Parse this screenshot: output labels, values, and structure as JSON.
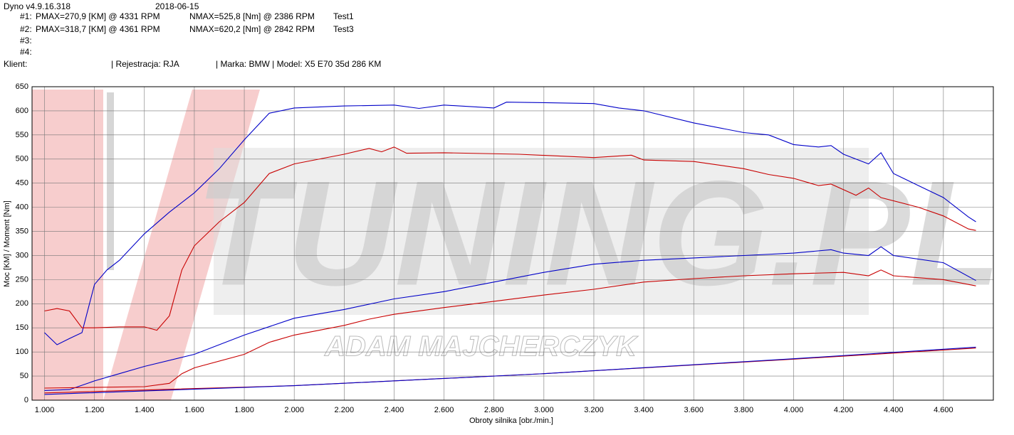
{
  "header": {
    "program": "Dyno v4.9.16.318",
    "date": "2018-06-15",
    "runs": [
      [
        "#1:",
        "PMAX=270,9 [KM] @ 4331 RPM",
        "NMAX=525,8 [Nm] @ 2386 RPM",
        "Test1"
      ],
      [
        "#2:",
        "PMAX=318,7 [KM] @ 4361 RPM",
        "NMAX=620,2 [Nm] @ 2842 RPM",
        "Test3"
      ],
      [
        "#3:"
      ],
      [
        "#4:"
      ]
    ],
    "client": "Klient:",
    "registration": "| Rejestracja: RJA",
    "vehicle": "| Marka: BMW | Model: X5 E70 35d 286 KM"
  },
  "chart_data": {
    "type": "line",
    "watermark": "TUNING.PL",
    "watermark_sub": "ADAM MAJCHERCZYK",
    "xlabel": "Obroty silnika [obr./min.]",
    "ylabel": "Moc [KM] / Moment [Nm]",
    "xlim": [
      950,
      4800
    ],
    "ylim": [
      0,
      650
    ],
    "xticks": [
      {
        "value": 1000,
        "label": "1.000"
      },
      {
        "value": 1200,
        "label": "1.200"
      },
      {
        "value": 1400,
        "label": "1.400"
      },
      {
        "value": 1600,
        "label": "1.600"
      },
      {
        "value": 1800,
        "label": "1.800"
      },
      {
        "value": 2000,
        "label": "2.000"
      },
      {
        "value": 2200,
        "label": "2.200"
      },
      {
        "value": 2400,
        "label": "2.400"
      },
      {
        "value": 2600,
        "label": "2.600"
      },
      {
        "value": 2800,
        "label": "2.800"
      },
      {
        "value": 3000,
        "label": "3.000"
      },
      {
        "value": 3200,
        "label": "3.200"
      },
      {
        "value": 3400,
        "label": "3.400"
      },
      {
        "value": 3600,
        "label": "3.600"
      },
      {
        "value": 3800,
        "label": "3.800"
      },
      {
        "value": 4000,
        "label": "4.000"
      },
      {
        "value": 4200,
        "label": "4.200"
      },
      {
        "value": 4400,
        "label": "4.400"
      },
      {
        "value": 4600,
        "label": "4.600"
      }
    ],
    "yticks": [
      0,
      50,
      100,
      150,
      200,
      250,
      300,
      350,
      400,
      450,
      500,
      550,
      600,
      650
    ],
    "grid": true,
    "series": [
      {
        "color": "#0000c8",
        "x": [
          1000,
          1050,
          1100,
          1150,
          1200,
          1250,
          1300,
          1400,
          1500,
          1600,
          1700,
          1800,
          1900,
          2000,
          2200,
          2400,
          2500,
          2600,
          2800,
          2850,
          3000,
          3200,
          3300,
          3400,
          3600,
          3800,
          3900,
          4000,
          4100,
          4150,
          4200,
          4300,
          4350,
          4400,
          4500,
          4600,
          4700,
          4730
        ],
        "values": [
          140,
          115,
          128,
          140,
          240,
          270,
          290,
          345,
          390,
          430,
          480,
          540,
          595,
          606,
          610,
          612,
          605,
          612,
          606,
          618,
          617,
          615,
          606,
          600,
          575,
          555,
          550,
          530,
          525,
          528,
          510,
          490,
          513,
          470,
          445,
          420,
          380,
          370
        ]
      },
      {
        "color": "#c80000",
        "x": [
          1000,
          1050,
          1100,
          1150,
          1200,
          1300,
          1400,
          1450,
          1500,
          1550,
          1600,
          1700,
          1800,
          1900,
          2000,
          2200,
          2300,
          2350,
          2400,
          2450,
          2600,
          2900,
          3200,
          3350,
          3400,
          3600,
          3800,
          3900,
          4000,
          4100,
          4150,
          4250,
          4300,
          4350,
          4500,
          4600,
          4700,
          4730
        ],
        "values": [
          185,
          190,
          185,
          150,
          150,
          152,
          152,
          145,
          175,
          270,
          320,
          370,
          410,
          470,
          490,
          510,
          522,
          515,
          525,
          512,
          513,
          510,
          503,
          508,
          498,
          495,
          480,
          468,
          460,
          445,
          448,
          425,
          440,
          420,
          400,
          382,
          355,
          352
        ]
      },
      {
        "color": "#0000c8",
        "x": [
          1000,
          1100,
          1200,
          1300,
          1400,
          1600,
          1800,
          2000,
          2200,
          2400,
          2600,
          2800,
          3000,
          3200,
          3400,
          3600,
          3800,
          4000,
          4150,
          4200,
          4300,
          4350,
          4400,
          4600,
          4730
        ],
        "values": [
          20,
          22,
          40,
          55,
          70,
          95,
          135,
          170,
          188,
          210,
          225,
          245,
          265,
          282,
          290,
          295,
          300,
          305,
          312,
          305,
          300,
          318,
          300,
          285,
          248
        ]
      },
      {
        "color": "#c80000",
        "x": [
          1000,
          1400,
          1500,
          1550,
          1600,
          1800,
          1900,
          2000,
          2200,
          2300,
          2400,
          2600,
          2800,
          3000,
          3200,
          3400,
          3600,
          3800,
          4000,
          4200,
          4300,
          4350,
          4400,
          4600,
          4730
        ],
        "values": [
          25,
          28,
          35,
          55,
          67,
          95,
          120,
          135,
          155,
          168,
          178,
          192,
          205,
          218,
          230,
          245,
          252,
          258,
          262,
          265,
          258,
          270,
          258,
          250,
          237
        ]
      },
      {
        "color": "#c80000",
        "x": [
          1000,
          2000,
          3000,
          4000,
          4730
        ],
        "values": [
          15,
          30,
          55,
          85,
          108
        ]
      },
      {
        "color": "#0000c8",
        "x": [
          1000,
          2000,
          3000,
          4000,
          4730
        ],
        "values": [
          12,
          30,
          55,
          86,
          110
        ]
      }
    ]
  }
}
